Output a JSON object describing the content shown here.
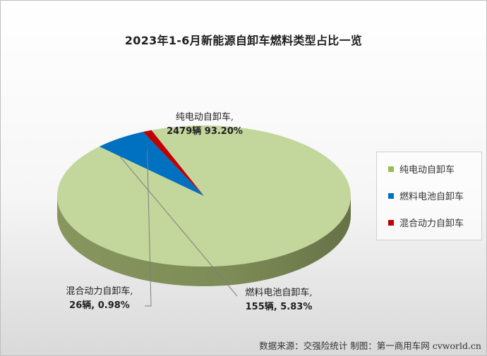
{
  "chart_data": {
    "type": "pie",
    "title": "2023年1-6月新能源自卸车燃料类型占比一览",
    "slices": [
      {
        "name": "纯电动自卸车",
        "value": 2479,
        "percent": "93.20%",
        "value_text": "2479辆 93.20%",
        "color": "#c3d69b",
        "side_color": "#8e9e62"
      },
      {
        "name": "燃料电池自卸车",
        "value": 155,
        "percent": "5.83%",
        "value_text": "155辆, 5.83%",
        "color": "#0070c0",
        "side_color": "#1f3864"
      },
      {
        "name": "混合动力自卸车",
        "value": 26,
        "percent": "0.98%",
        "value_text": "26辆, 0.98%",
        "color": "#c00000",
        "side_color": "#7a0000"
      }
    ],
    "legend_position": "right",
    "style": "3d-pie"
  },
  "labels": {
    "bev_name": "纯电动自卸车,",
    "bev_value": "2479辆 93.20%",
    "fcv_name": "燃料电池自卸车,",
    "fcv_value": "155辆, 5.83%",
    "hev_name": "混合动力自卸车,",
    "hev_value": "26辆, 0.98%"
  },
  "legend": [
    {
      "label": "纯电动自卸车",
      "color": "#9bbb59"
    },
    {
      "label": "燃料电池自卸车",
      "color": "#0070c0"
    },
    {
      "label": "混合动力自卸车",
      "color": "#c00000"
    }
  ],
  "source": "数据来源：交强险统计 制图：第一商用车网 cvworld.cn"
}
